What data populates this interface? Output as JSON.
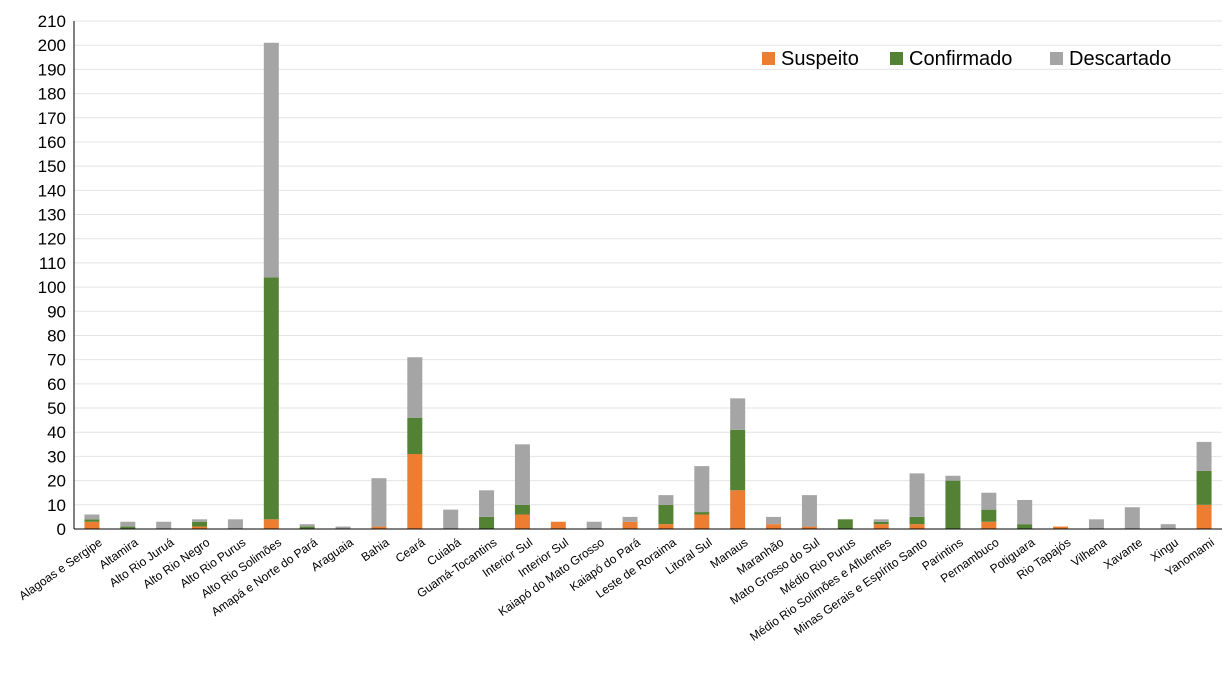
{
  "chart_data": {
    "type": "bar",
    "stacked": true,
    "categories": [
      "Alagoas e Sergipe",
      "Altamira",
      "Alto Rio Juruá",
      "Alto Rio Negro",
      "Alto Rio Purus",
      "Alto Rio Solimões",
      "Amapá e Norte do Pará",
      "Araguaia",
      "Bahia",
      "Ceará",
      "Cuiabá",
      "Guamá-Tocantins",
      "Interior Sul",
      "Interior Sul",
      "Kaiapó do Mato Grosso",
      "Kaiapó do Pará",
      "Leste de Roraima",
      "Litoral Sul",
      "Manaus",
      "Maranhão",
      "Mato Grosso do Sul",
      "Médio Rio Purus",
      "Médio Rio Solimões e Afluentes",
      "Minas Gerais e Espírito Santo",
      "Parintins",
      "Pernambuco",
      "Potiguara",
      "Rio Tapajós",
      "Vilhena",
      "Xavante",
      "Xingu",
      "Yanomami"
    ],
    "series": [
      {
        "name": "Suspeito",
        "color": "#ED7D31",
        "values": [
          3,
          0,
          0,
          1,
          0,
          4,
          0,
          0,
          1,
          31,
          0,
          0,
          6,
          3,
          0,
          3,
          2,
          6,
          16,
          2,
          1,
          0,
          2,
          2,
          0,
          3,
          0,
          1,
          0,
          0,
          0,
          10
        ]
      },
      {
        "name": "Confirmado",
        "color": "#548235",
        "values": [
          1,
          1,
          0,
          2,
          0,
          100,
          1,
          0,
          0,
          15,
          0,
          5,
          4,
          0,
          0,
          0,
          8,
          1,
          25,
          0,
          0,
          4,
          1,
          3,
          20,
          5,
          2,
          0,
          0,
          0,
          0,
          14
        ]
      },
      {
        "name": "Descartado",
        "color": "#A5A5A5",
        "values": [
          2,
          2,
          3,
          1,
          4,
          97,
          1,
          1,
          20,
          25,
          8,
          11,
          25,
          0,
          3,
          2,
          4,
          19,
          13,
          3,
          13,
          0,
          1,
          18,
          2,
          7,
          10,
          0,
          4,
          9,
          2,
          12
        ]
      }
    ],
    "ylim": [
      0,
      210
    ],
    "yticks": [
      0,
      10,
      20,
      30,
      40,
      50,
      60,
      70,
      80,
      90,
      100,
      110,
      120,
      130,
      140,
      150,
      160,
      170,
      180,
      190,
      200,
      210
    ],
    "grid": true,
    "legend_position": "top-right",
    "title": "",
    "xlabel": "",
    "ylabel": ""
  }
}
